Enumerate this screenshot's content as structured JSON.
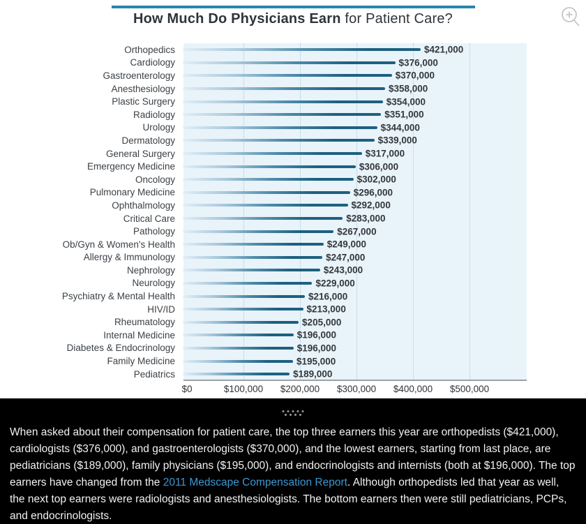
{
  "header": {
    "title_bold": "How Much Do Physicians Earn",
    "title_regular": " for Patient Care?",
    "rule_color": "#2d84a8"
  },
  "chart_data": {
    "type": "bar",
    "orientation": "horizontal",
    "title": "How Much Do Physicians Earn for Patient Care?",
    "categories": [
      "Orthopedics",
      "Cardiology",
      "Gastroenterology",
      "Anesthesiology",
      "Plastic Surgery",
      "Radiology",
      "Urology",
      "Dermatology",
      "General Surgery",
      "Emergency Medicine",
      "Oncology",
      "Pulmonary Medicine",
      "Ophthalmology",
      "Critical Care",
      "Pathology",
      "Ob/Gyn & Women's Health",
      "Allergy & Immunology",
      "Nephrology",
      "Neurology",
      "Psychiatry & Mental Health",
      "HIV/ID",
      "Rheumatology",
      "Internal Medicine",
      "Diabetes & Endocrinology",
      "Family Medicine",
      "Pediatrics"
    ],
    "values": [
      421000,
      376000,
      370000,
      358000,
      354000,
      351000,
      344000,
      339000,
      317000,
      306000,
      302000,
      296000,
      292000,
      283000,
      267000,
      249000,
      247000,
      243000,
      229000,
      216000,
      213000,
      205000,
      196000,
      196000,
      195000,
      189000
    ],
    "value_labels": [
      "$421,000",
      "$376,000",
      "$370,000",
      "$358,000",
      "$354,000",
      "$351,000",
      "$344,000",
      "$339,000",
      "$317,000",
      "$306,000",
      "$302,000",
      "$296,000",
      "$292,000",
      "$283,000",
      "$267,000",
      "$249,000",
      "$247,000",
      "$243,000",
      "$229,000",
      "$216,000",
      "$213,000",
      "$205,000",
      "$196,000",
      "$196,000",
      "$195,000",
      "$189,000"
    ],
    "x_ticks": [
      {
        "value": 0,
        "label": "$0"
      },
      {
        "value": 100000,
        "label": "$100,000"
      },
      {
        "value": 200000,
        "label": "$200,000"
      },
      {
        "value": 300000,
        "label": "$300,000"
      },
      {
        "value": 400000,
        "label": "$400,000"
      },
      {
        "value": 500000,
        "label": "$500,000"
      }
    ],
    "xlim": [
      0,
      600000
    ],
    "grid": "vertical-dotted",
    "plot_bg_color": "#e9f3fa",
    "bar_color_dark": "#1d6080",
    "legend": "none"
  },
  "caption": {
    "text_before_link": "When asked about their compensation for patient care, the top three earners this year are orthopedists ($421,000), cardiologists ($376,000), and gastroenterologists ($370,000), and the lowest earners, starting from last place, are pediatricians ($189,000), family physicians ($195,000), and endocrinologists and internists (both at $196,000). The top earners have changed from the ",
    "link_text": "2011 Medscape Compensation Report",
    "text_after_link": ". Although orthopedists led that year as well, the next top earners were radiologists and anesthesiologists. The bottom earners then were still pediatricians, PCPs, and endocrinologists.",
    "link_color": "#3b97d3"
  }
}
